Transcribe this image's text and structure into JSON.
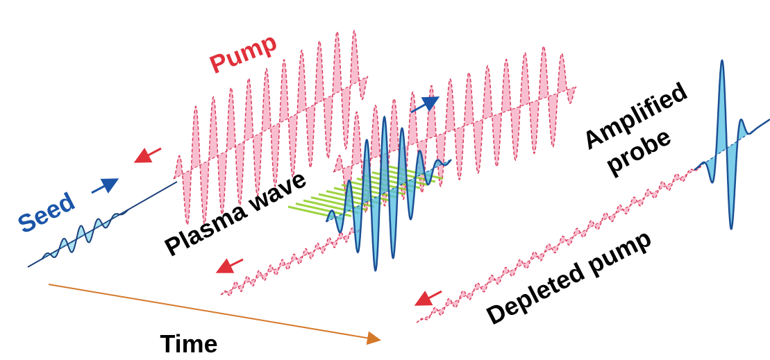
{
  "labels": {
    "pump": "Pump",
    "seed": "Seed",
    "plasma_wave": "Plasma wave",
    "amplified": "Amplified",
    "probe": "probe",
    "depleted_pump": "Depleted pump",
    "time": "Time"
  }
}
